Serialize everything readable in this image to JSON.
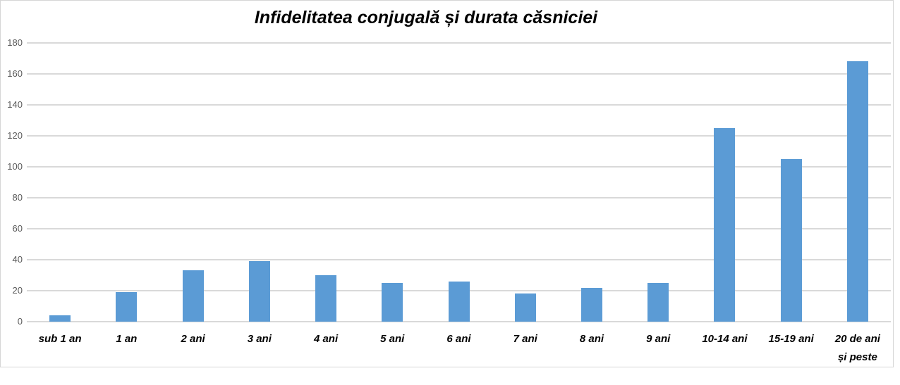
{
  "chart_data": {
    "type": "bar",
    "title": "Infidelitatea conjugală  și durata căsniciei",
    "categories": [
      "sub 1 an",
      "1 an",
      "2 ani",
      "3 ani",
      "4 ani",
      "5 ani",
      "6 ani",
      "7 ani",
      "8 ani",
      "9 ani",
      "10-14 ani",
      "15-19 ani",
      "20 de ani\nși peste"
    ],
    "values": [
      4,
      19,
      33,
      39,
      30,
      25,
      26,
      18,
      22,
      25,
      125,
      105,
      168
    ],
    "xlabel": "",
    "ylabel": "",
    "ylim": [
      0,
      180
    ],
    "ytick_step": 20,
    "ytick_labels": [
      "0",
      "20",
      "40",
      "60",
      "80",
      "100",
      "120",
      "140",
      "160",
      "180"
    ],
    "grid": true,
    "legend_position": "none",
    "bar_color": "#5b9bd5",
    "gridline_color": "#d9d9d9",
    "tick_label_color": "#595959",
    "category_label_color": "#000000",
    "frame_border_color": "#d6d6d6"
  }
}
